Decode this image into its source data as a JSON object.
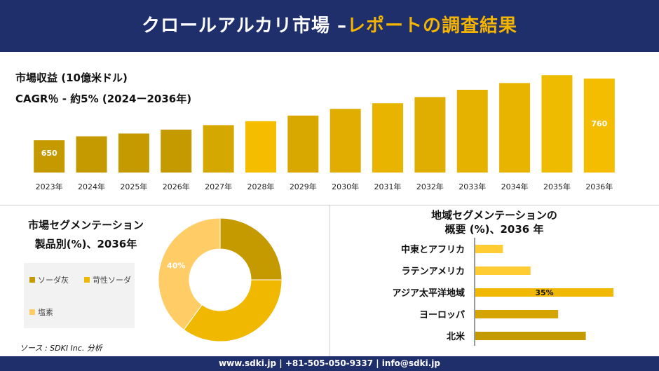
{
  "header": {
    "title_main": "クロールアルカリ市場 –",
    "title_accent": "レポートの調査結果"
  },
  "revenue_chart": {
    "label": "市場収益 (10億米ドル)",
    "cagr": "CAGR％ - 約5% (2024ー2036年)"
  },
  "segmentation": {
    "title": "市場セグメンテーション",
    "subtitle": "製品別(%)、2036年",
    "legend": [
      {
        "label": "ソーダ灰",
        "color": "#c49a00"
      },
      {
        "label": "苛性ソーダ",
        "color": "#f0b800"
      },
      {
        "label": "塩素",
        "color": "#ffcc66"
      }
    ]
  },
  "source": "ソース : SDKI Inc. 分析",
  "region": {
    "title_line1": "地域セグメンテーションの",
    "title_line2": "概要 (%)、2036 年"
  },
  "footer": {
    "text": "www.sdki.jp | +81-505-050-9337 | info@sdki.jp"
  },
  "chart_data": [
    {
      "type": "bar",
      "title": "市場収益 (10億米ドル)",
      "categories": [
        "2023年",
        "2024年",
        "2025年",
        "2026年",
        "2027年",
        "2028年",
        "2029年",
        "2030年",
        "2031年",
        "2032年",
        "2033年",
        "2034年",
        "2035年",
        "2036年"
      ],
      "values": [
        650,
        657,
        662,
        669,
        677,
        684,
        694,
        706,
        716,
        727,
        740,
        752,
        766,
        760
      ],
      "data_labels": {
        "0": "650",
        "13": "760"
      },
      "colors": [
        "#c49a00",
        "#c49a00",
        "#c49a00",
        "#c49a00",
        "#d4a800",
        "#f5bd00",
        "#d9a800",
        "#e0ad00",
        "#e8b400",
        "#e0ae00",
        "#e6b200",
        "#e8b400",
        "#eebb00",
        "#f5bd00"
      ],
      "ylim": [
        600,
        780
      ],
      "grid": false
    },
    {
      "type": "pie",
      "title": "製品別(%)、2036年",
      "labels": [
        "ソーダ灰",
        "苛性ソーダ",
        "塩素"
      ],
      "values": [
        25,
        35,
        40
      ],
      "colors": [
        "#c49a00",
        "#f0b800",
        "#ffcc66"
      ],
      "data_labels": {
        "2": "40%"
      }
    },
    {
      "type": "bar",
      "orientation": "horizontal",
      "title": "地域セグメンテーションの概要 (%)、2036 年",
      "categories": [
        "中東とアフリカ",
        "ラテンアメリカ",
        "アジア太平洋地域",
        "ヨーロッパ",
        "北米"
      ],
      "values": [
        7,
        14,
        35,
        21,
        28
      ],
      "colors": [
        "#ffcc33",
        "#ffcc33",
        "#f0b800",
        "#d4a500",
        "#c49a00"
      ],
      "data_labels": {
        "2": "35%"
      },
      "xlim": [
        0,
        40
      ]
    }
  ]
}
